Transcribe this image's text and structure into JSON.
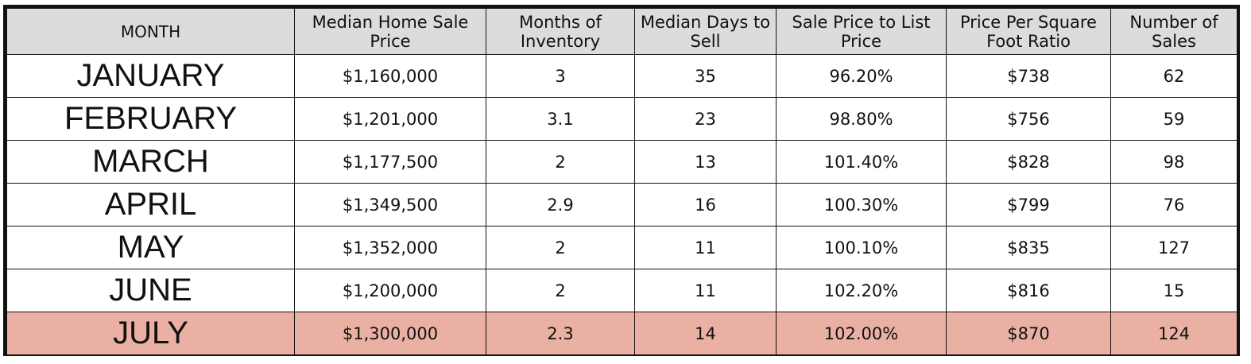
{
  "table": {
    "columns": [
      "MONTH",
      "Median Home Sale Price",
      "Months of Inventory",
      "Median Days to Sell",
      "Sale Price to List Price",
      "Price Per Square Foot Ratio",
      "Number of Sales"
    ],
    "rows": [
      {
        "month": "JANUARY",
        "median_price": "$1,160,000",
        "inventory": "3",
        "days": "35",
        "sale_to_list": "96.20%",
        "price_sqft": "$738",
        "sales": "62"
      },
      {
        "month": "FEBRUARY",
        "median_price": "$1,201,000",
        "inventory": "3.1",
        "days": "23",
        "sale_to_list": "98.80%",
        "price_sqft": "$756",
        "sales": "59"
      },
      {
        "month": "MARCH",
        "median_price": "$1,177,500",
        "inventory": "2",
        "days": "13",
        "sale_to_list": "101.40%",
        "price_sqft": "$828",
        "sales": "98"
      },
      {
        "month": "APRIL",
        "median_price": "$1,349,500",
        "inventory": "2.9",
        "days": "16",
        "sale_to_list": "100.30%",
        "price_sqft": "$799",
        "sales": "76"
      },
      {
        "month": "MAY",
        "median_price": "$1,352,000",
        "inventory": "2",
        "days": "11",
        "sale_to_list": "100.10%",
        "price_sqft": "$835",
        "sales": "127"
      },
      {
        "month": "JUNE",
        "median_price": "$1,200,000",
        "inventory": "2",
        "days": "11",
        "sale_to_list": "102.20%",
        "price_sqft": "$816",
        "sales": "15"
      },
      {
        "month": "JULY",
        "median_price": "$1,300,000",
        "inventory": "2.3",
        "days": "14",
        "sale_to_list": "102.00%",
        "price_sqft": "$870",
        "sales": "124"
      }
    ],
    "highlighted_row_color": "#eab0a3",
    "header_background": "#dcdcdc"
  }
}
